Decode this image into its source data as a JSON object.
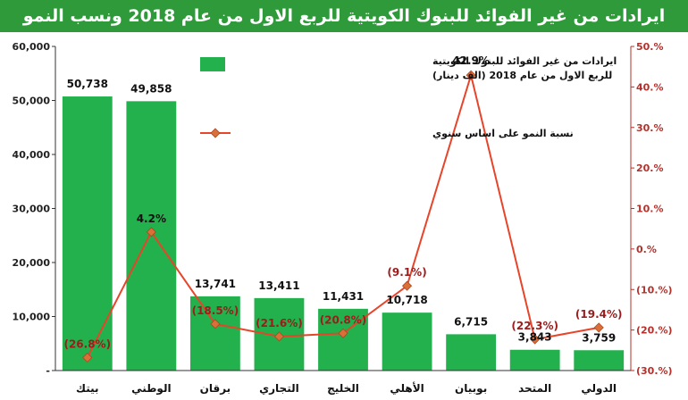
{
  "chart_data": {
    "type": "bar",
    "title": "ايرادات من غير الفوائد للبنوك الكويتية للربع الاول من عام 2018 ونسب النمو",
    "categories": [
      "بيتك",
      "الوطني",
      "برقان",
      "التجاري",
      "الخليج",
      "الأهلي",
      "بوبيان",
      "المتحد",
      "الدولي"
    ],
    "series": [
      {
        "name": "ايرادات من غير الفوائد للبنوك الكويتية للربع الاول من عام 2018 (الف دينار)",
        "type": "bar",
        "axis": "left",
        "values": [
          50738,
          49858,
          13741,
          13411,
          11431,
          10718,
          6715,
          3843,
          3759
        ],
        "labels": [
          "50,738",
          "49,858",
          "13,741",
          "13,411",
          "11,431",
          "10,718",
          "6,715",
          "3,843",
          "3,759"
        ]
      },
      {
        "name": "نسبة النمو على اساس سنوي",
        "type": "line",
        "axis": "right",
        "values": [
          -26.8,
          4.2,
          -18.5,
          -21.6,
          -20.8,
          -9.1,
          42.9,
          -22.3,
          -19.4
        ],
        "labels": [
          "(26.8%)",
          "4.2%",
          "(18.5%)",
          "(21.6%)",
          "(20.8%)",
          "(9.1%)",
          "42.9%",
          "(22.3%)",
          "(19.4%)"
        ]
      }
    ],
    "y_left": {
      "ylim": [
        0,
        60000
      ],
      "ticks": [
        "-",
        "10,000",
        "20,000",
        "30,000",
        "40,000",
        "50,000",
        "60,000"
      ]
    },
    "y_right": {
      "ylim": [
        -30,
        50
      ],
      "ticks": [
        "(30.%)",
        "(20.%)",
        "(10.%)",
        "0.%",
        "10.%",
        "20.%",
        "30.%",
        "40.%",
        "50.%"
      ]
    },
    "grid": false,
    "legend_position": "top-center",
    "colors": {
      "bar": "#22b14c",
      "line": "#e8442a",
      "marker": "#d9703a",
      "axis_right": "#b4302a",
      "label_neg": "#9b1c1c",
      "title_bg": "#2e9a3a"
    }
  }
}
